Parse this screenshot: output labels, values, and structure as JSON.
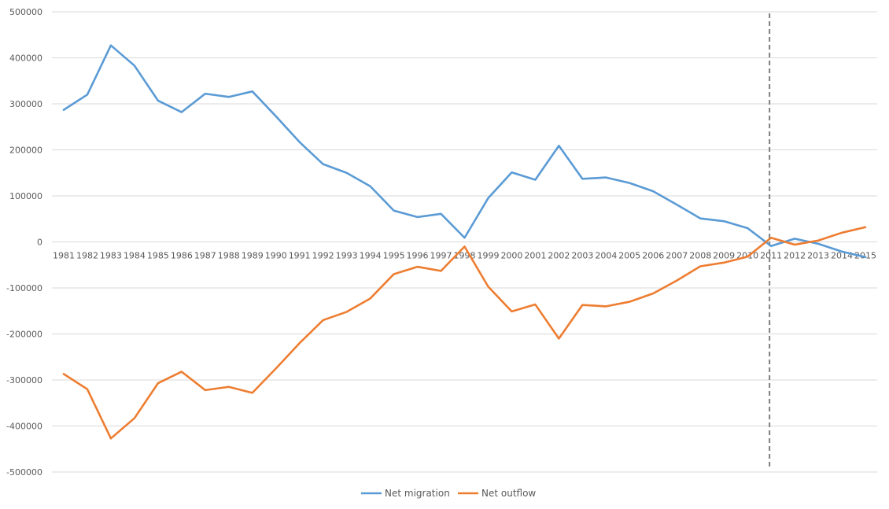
{
  "chart_data": {
    "type": "line",
    "title": "",
    "xlabel": "",
    "ylabel": "",
    "ylim": [
      -500000,
      500000
    ],
    "y_ticks": [
      "500000",
      "400000",
      "300000",
      "200000",
      "100000",
      "0",
      "-100000",
      "-200000",
      "-300000",
      "-400000",
      "-500000"
    ],
    "grid": "horizontal",
    "legend_position": "bottom",
    "marker_line": {
      "at_category": "2011",
      "style": "dashed",
      "color": "#7f7f7f"
    },
    "categories": [
      "1981",
      "1982",
      "1983",
      "1984",
      "1985",
      "1986",
      "1987",
      "1988",
      "1989",
      "1990",
      "1991",
      "1992",
      "1993",
      "1994",
      "1995",
      "1996",
      "1997",
      "1998",
      "1999",
      "2000",
      "2001",
      "2002",
      "2003",
      "2004",
      "2005",
      "2006",
      "2007",
      "2008",
      "2009",
      "2010",
      "2011",
      "2012",
      "2013",
      "2014",
      "2015"
    ],
    "series": [
      {
        "name": "Net migration",
        "color": "#5b9bd5",
        "values": [
          287000,
          320000,
          427000,
          383000,
          307000,
          282000,
          322000,
          315000,
          327000,
          273000,
          217000,
          169000,
          150000,
          121000,
          68000,
          54000,
          61000,
          9000,
          95000,
          151000,
          135000,
          209000,
          137000,
          140000,
          128000,
          110000,
          81000,
          51000,
          45000,
          30000,
          -9000,
          7000,
          -4000,
          -21000,
          -33000
        ]
      },
      {
        "name": "Net outflow",
        "color": "#ed7d31",
        "values": [
          -287000,
          -320000,
          -427000,
          -383000,
          -307000,
          -282000,
          -322000,
          -315000,
          -328000,
          -275000,
          -220000,
          -170000,
          -152000,
          -123000,
          -70000,
          -54000,
          -63000,
          -10000,
          -97000,
          -151000,
          -136000,
          -210000,
          -137000,
          -140000,
          -130000,
          -112000,
          -84000,
          -53000,
          -45000,
          -32000,
          9000,
          -6000,
          3000,
          20000,
          32000
        ]
      }
    ]
  }
}
